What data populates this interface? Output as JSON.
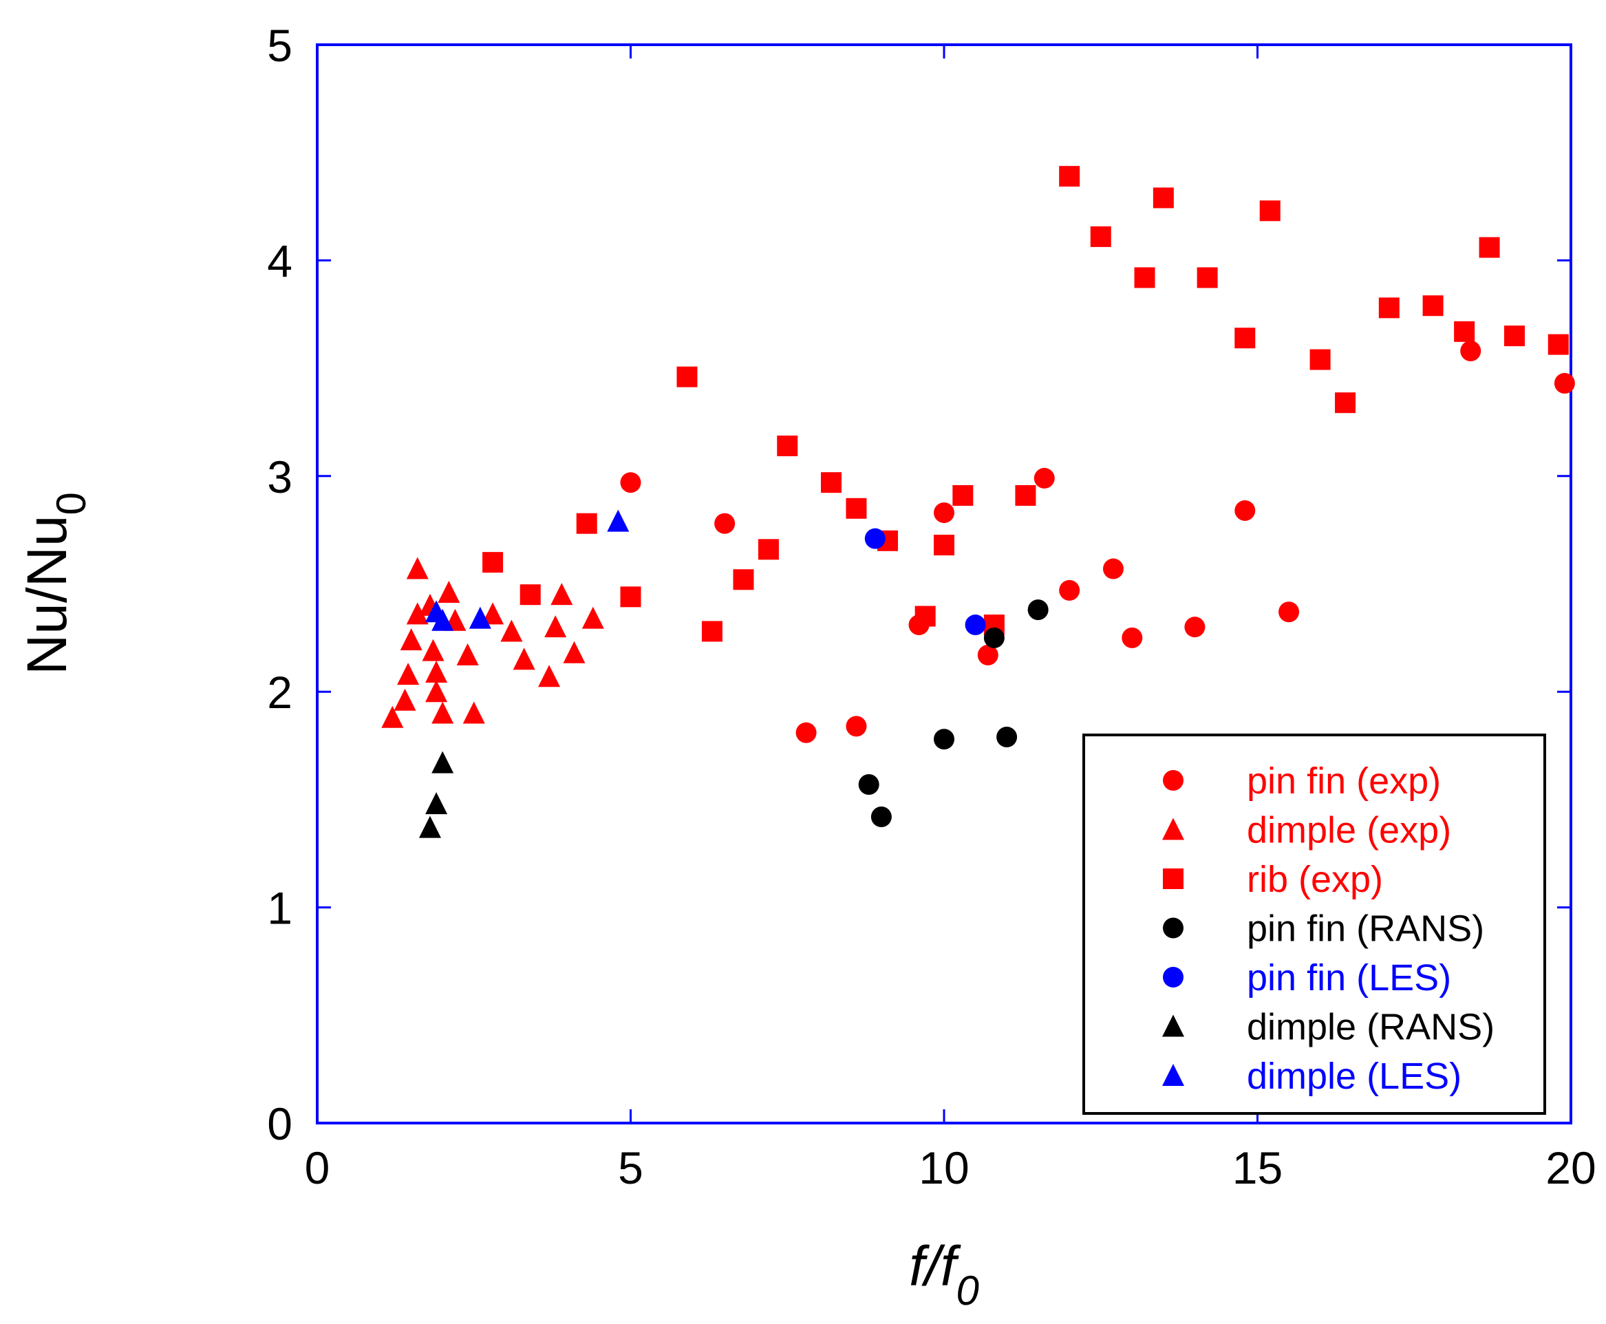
{
  "chart_data": {
    "type": "scatter",
    "title": "",
    "xlabel": "f/f0",
    "xlabel_main": "f/f",
    "xlabel_sub": "0",
    "ylabel": "Nu/Nu0",
    "ylabel_main": "Nu/Nu",
    "ylabel_sub": "0",
    "xlim": [
      0,
      20
    ],
    "ylim": [
      0,
      5
    ],
    "xticks": [
      0,
      5,
      10,
      15,
      20
    ],
    "yticks": [
      0,
      1,
      2,
      3,
      4,
      5
    ],
    "grid": false,
    "legend_position": "bottom-right",
    "series": [
      {
        "name": "pin fin (exp)",
        "marker": "circle",
        "color": "#ff0000",
        "points": [
          [
            5.0,
            2.97
          ],
          [
            6.5,
            2.78
          ],
          [
            7.8,
            1.81
          ],
          [
            8.6,
            1.84
          ],
          [
            9.6,
            2.31
          ],
          [
            10.0,
            2.83
          ],
          [
            10.7,
            2.17
          ],
          [
            11.6,
            2.99
          ],
          [
            12.0,
            2.47
          ],
          [
            12.7,
            2.57
          ],
          [
            13.0,
            2.25
          ],
          [
            14.0,
            2.3
          ],
          [
            14.8,
            2.84
          ],
          [
            15.5,
            2.37
          ],
          [
            18.4,
            3.58
          ],
          [
            19.9,
            3.43
          ]
        ]
      },
      {
        "name": "dimple (exp)",
        "marker": "triangle",
        "color": "#ff0000",
        "points": [
          [
            1.2,
            1.88
          ],
          [
            1.4,
            1.96
          ],
          [
            1.45,
            2.08
          ],
          [
            1.5,
            2.24
          ],
          [
            1.6,
            2.36
          ],
          [
            1.6,
            2.57
          ],
          [
            1.8,
            2.4
          ],
          [
            1.85,
            2.19
          ],
          [
            1.9,
            2.09
          ],
          [
            1.9,
            2.0
          ],
          [
            2.0,
            1.9
          ],
          [
            2.1,
            2.46
          ],
          [
            2.2,
            2.33
          ],
          [
            2.4,
            2.17
          ],
          [
            2.5,
            1.9
          ],
          [
            2.8,
            2.36
          ],
          [
            3.1,
            2.28
          ],
          [
            3.3,
            2.15
          ],
          [
            3.7,
            2.07
          ],
          [
            3.8,
            2.3
          ],
          [
            3.9,
            2.45
          ],
          [
            4.1,
            2.18
          ],
          [
            4.4,
            2.34
          ]
        ]
      },
      {
        "name": "rib (exp)",
        "marker": "square",
        "color": "#ff0000",
        "points": [
          [
            2.8,
            2.6
          ],
          [
            3.4,
            2.45
          ],
          [
            4.3,
            2.78
          ],
          [
            5.0,
            2.44
          ],
          [
            5.9,
            3.46
          ],
          [
            6.3,
            2.28
          ],
          [
            6.8,
            2.52
          ],
          [
            7.2,
            2.66
          ],
          [
            7.5,
            3.14
          ],
          [
            8.2,
            2.97
          ],
          [
            8.6,
            2.85
          ],
          [
            9.1,
            2.7
          ],
          [
            9.7,
            2.35
          ],
          [
            10.0,
            2.68
          ],
          [
            10.3,
            2.91
          ],
          [
            10.8,
            2.31
          ],
          [
            11.3,
            2.91
          ],
          [
            12.0,
            4.39
          ],
          [
            12.5,
            4.11
          ],
          [
            13.2,
            3.92
          ],
          [
            13.5,
            4.29
          ],
          [
            14.2,
            3.92
          ],
          [
            14.8,
            3.64
          ],
          [
            15.2,
            4.23
          ],
          [
            16.0,
            3.54
          ],
          [
            16.4,
            3.34
          ],
          [
            17.1,
            3.78
          ],
          [
            17.8,
            3.79
          ],
          [
            18.3,
            3.67
          ],
          [
            18.7,
            4.06
          ],
          [
            19.1,
            3.65
          ],
          [
            19.8,
            3.61
          ]
        ]
      },
      {
        "name": "pin fin (RANS)",
        "marker": "circle",
        "color": "#000000",
        "points": [
          [
            8.8,
            1.57
          ],
          [
            9.0,
            1.42
          ],
          [
            10.0,
            1.78
          ],
          [
            10.8,
            2.25
          ],
          [
            11.0,
            1.79
          ],
          [
            11.5,
            2.38
          ]
        ]
      },
      {
        "name": "pin fin (LES)",
        "marker": "circle",
        "color": "#0000ff",
        "points": [
          [
            8.9,
            2.71
          ],
          [
            10.5,
            2.31
          ]
        ]
      },
      {
        "name": "dimple (RANS)",
        "marker": "triangle",
        "color": "#000000",
        "points": [
          [
            1.8,
            1.37
          ],
          [
            1.9,
            1.48
          ],
          [
            2.0,
            1.67
          ]
        ]
      },
      {
        "name": "dimple (LES)",
        "marker": "triangle",
        "color": "#0000ff",
        "points": [
          [
            1.9,
            2.37
          ],
          [
            2.0,
            2.33
          ],
          [
            2.6,
            2.34
          ],
          [
            4.8,
            2.79
          ]
        ]
      }
    ]
  }
}
